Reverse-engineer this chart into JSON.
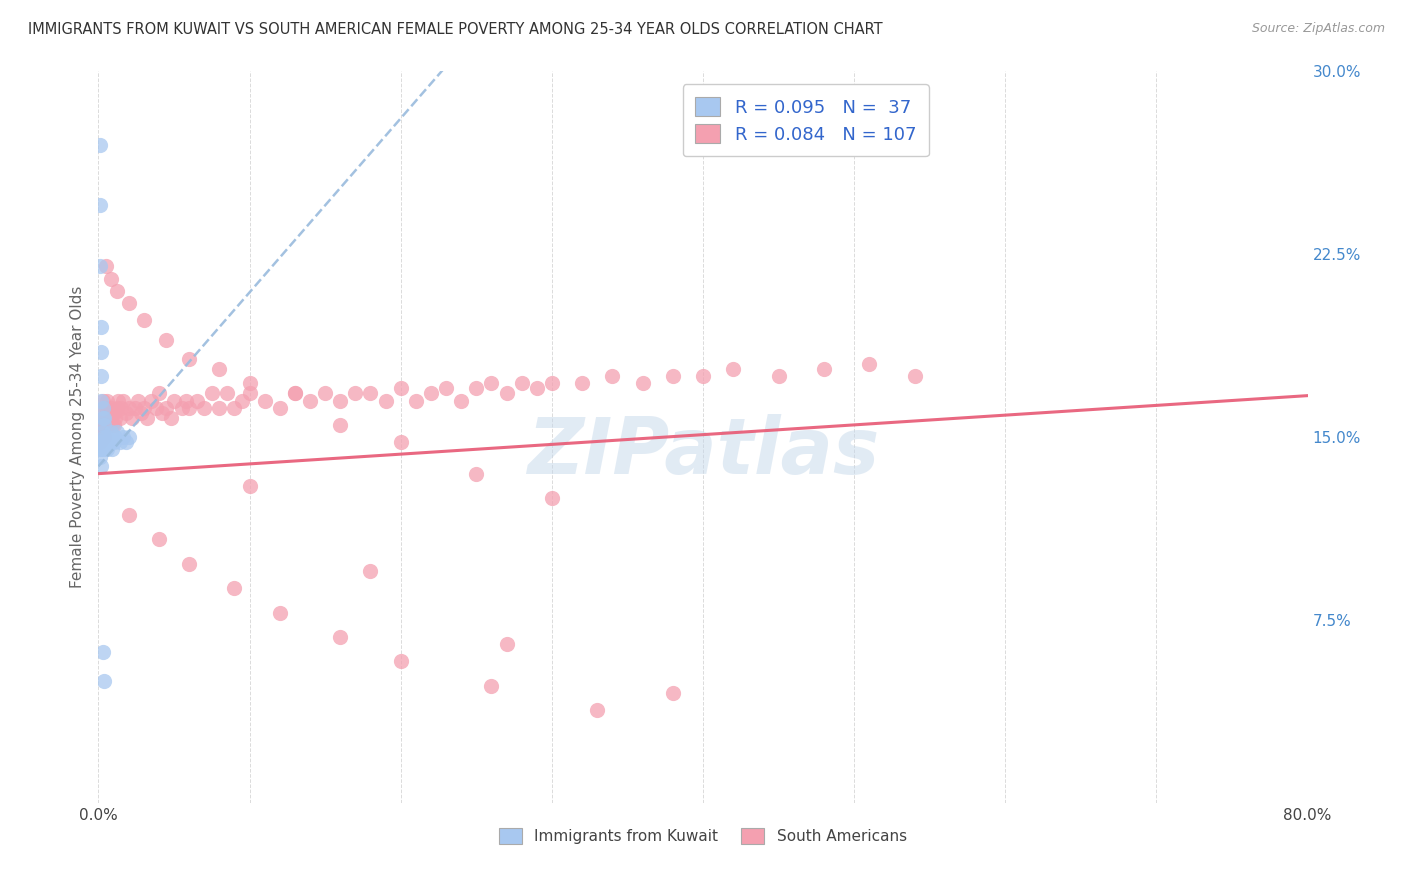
{
  "title": "IMMIGRANTS FROM KUWAIT VS SOUTH AMERICAN FEMALE POVERTY AMONG 25-34 YEAR OLDS CORRELATION CHART",
  "source": "Source: ZipAtlas.com",
  "ylabel": "Female Poverty Among 25-34 Year Olds",
  "xlim": [
    0,
    0.8
  ],
  "ylim": [
    0,
    0.3
  ],
  "xticks": [
    0.0,
    0.1,
    0.2,
    0.3,
    0.4,
    0.5,
    0.6,
    0.7,
    0.8
  ],
  "xticklabels": [
    "0.0%",
    "",
    "",
    "",
    "",
    "",
    "",
    "",
    "80.0%"
  ],
  "ytick_right_labels": [
    "",
    "7.5%",
    "15.0%",
    "22.5%",
    "30.0%"
  ],
  "ytick_right_vals": [
    0.0,
    0.075,
    0.15,
    0.225,
    0.3
  ],
  "kuwait_R": 0.095,
  "kuwait_N": 37,
  "sa_R": 0.084,
  "sa_N": 107,
  "kuwait_color": "#a8c8f0",
  "sa_color": "#f4a0b0",
  "kuwait_trend_color": "#5588cc",
  "sa_trend_color": "#e8607a",
  "kuwait_dashed_color": "#99bbdd",
  "legend_label_kuwait": "Immigrants from Kuwait",
  "legend_label_sa": "South Americans",
  "watermark": "ZIPatlas",
  "background_color": "#ffffff",
  "grid_color": "#cccccc",
  "title_color": "#333333",
  "axis_label_color": "#666666",
  "right_tick_color": "#4488cc",
  "kuwait_scatter_x": [
    0.001,
    0.001,
    0.001,
    0.002,
    0.002,
    0.002,
    0.002,
    0.003,
    0.003,
    0.003,
    0.004,
    0.004,
    0.004,
    0.005,
    0.005,
    0.006,
    0.006,
    0.007,
    0.008,
    0.008,
    0.009,
    0.01,
    0.011,
    0.012,
    0.014,
    0.016,
    0.018,
    0.02,
    0.001,
    0.001,
    0.001,
    0.002,
    0.003,
    0.003,
    0.004,
    0.002,
    0.002
  ],
  "kuwait_scatter_y": [
    0.27,
    0.245,
    0.22,
    0.195,
    0.185,
    0.175,
    0.165,
    0.162,
    0.158,
    0.152,
    0.158,
    0.155,
    0.15,
    0.15,
    0.148,
    0.148,
    0.145,
    0.148,
    0.152,
    0.148,
    0.145,
    0.148,
    0.15,
    0.152,
    0.148,
    0.15,
    0.148,
    0.15,
    0.148,
    0.145,
    0.142,
    0.138,
    0.145,
    0.062,
    0.05,
    0.148,
    0.145
  ],
  "sa_scatter_x": [
    0.001,
    0.001,
    0.002,
    0.002,
    0.003,
    0.003,
    0.004,
    0.004,
    0.005,
    0.005,
    0.006,
    0.006,
    0.007,
    0.008,
    0.008,
    0.009,
    0.01,
    0.01,
    0.011,
    0.012,
    0.013,
    0.014,
    0.015,
    0.016,
    0.018,
    0.02,
    0.022,
    0.024,
    0.026,
    0.028,
    0.03,
    0.032,
    0.035,
    0.038,
    0.04,
    0.042,
    0.045,
    0.048,
    0.05,
    0.055,
    0.058,
    0.06,
    0.065,
    0.07,
    0.075,
    0.08,
    0.085,
    0.09,
    0.095,
    0.1,
    0.11,
    0.12,
    0.13,
    0.14,
    0.15,
    0.16,
    0.17,
    0.18,
    0.19,
    0.2,
    0.21,
    0.22,
    0.23,
    0.24,
    0.25,
    0.26,
    0.27,
    0.28,
    0.29,
    0.3,
    0.32,
    0.34,
    0.36,
    0.38,
    0.4,
    0.42,
    0.45,
    0.48,
    0.51,
    0.54,
    0.005,
    0.008,
    0.012,
    0.02,
    0.03,
    0.045,
    0.06,
    0.08,
    0.1,
    0.13,
    0.16,
    0.2,
    0.25,
    0.3,
    0.02,
    0.04,
    0.06,
    0.09,
    0.12,
    0.16,
    0.2,
    0.26,
    0.33,
    0.1,
    0.18,
    0.27,
    0.38
  ],
  "sa_scatter_y": [
    0.155,
    0.148,
    0.16,
    0.152,
    0.165,
    0.155,
    0.158,
    0.15,
    0.162,
    0.155,
    0.165,
    0.16,
    0.155,
    0.162,
    0.158,
    0.155,
    0.16,
    0.155,
    0.158,
    0.162,
    0.165,
    0.158,
    0.162,
    0.165,
    0.16,
    0.162,
    0.158,
    0.162,
    0.165,
    0.16,
    0.162,
    0.158,
    0.165,
    0.162,
    0.168,
    0.16,
    0.162,
    0.158,
    0.165,
    0.162,
    0.165,
    0.162,
    0.165,
    0.162,
    0.168,
    0.162,
    0.168,
    0.162,
    0.165,
    0.168,
    0.165,
    0.162,
    0.168,
    0.165,
    0.168,
    0.165,
    0.168,
    0.168,
    0.165,
    0.17,
    0.165,
    0.168,
    0.17,
    0.165,
    0.17,
    0.172,
    0.168,
    0.172,
    0.17,
    0.172,
    0.172,
    0.175,
    0.172,
    0.175,
    0.175,
    0.178,
    0.175,
    0.178,
    0.18,
    0.175,
    0.22,
    0.215,
    0.21,
    0.205,
    0.198,
    0.19,
    0.182,
    0.178,
    0.172,
    0.168,
    0.155,
    0.148,
    0.135,
    0.125,
    0.118,
    0.108,
    0.098,
    0.088,
    0.078,
    0.068,
    0.058,
    0.048,
    0.038,
    0.13,
    0.095,
    0.065,
    0.045
  ]
}
